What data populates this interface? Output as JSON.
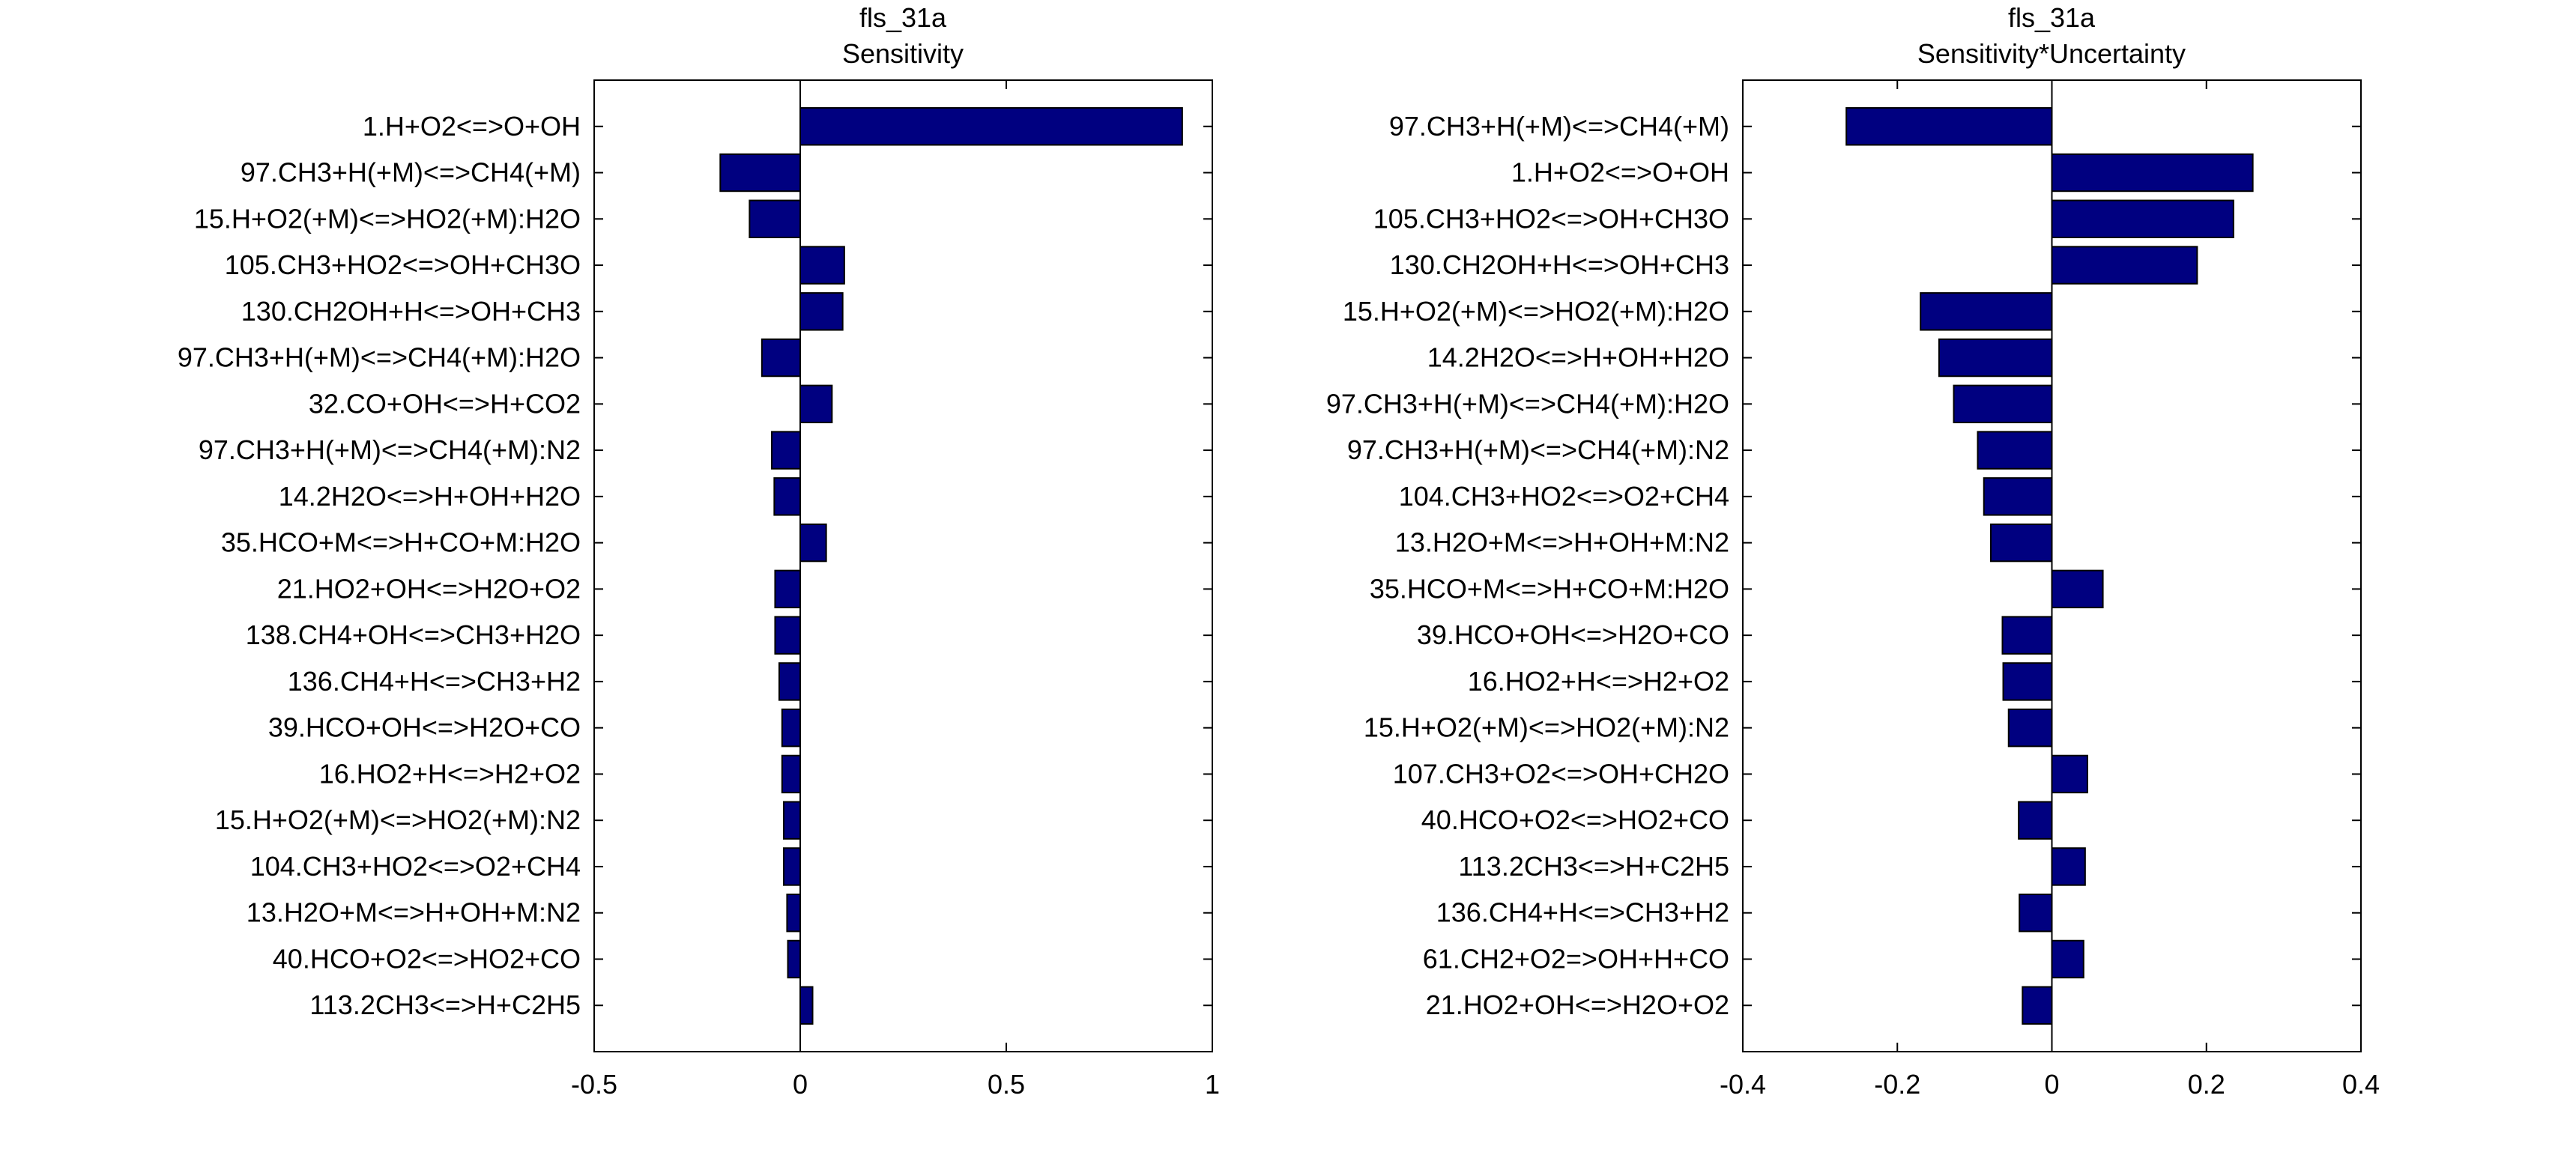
{
  "chart_data": [
    {
      "type": "bar",
      "orientation": "horizontal",
      "title": "fls_31a",
      "subtitle": "Sensitivity",
      "xlabel": "",
      "ylabel": "",
      "xlim": [
        -0.5,
        1
      ],
      "xticks": [
        "-0.5",
        "0",
        "0.5",
        "1"
      ],
      "xtick_values": [
        -0.5,
        0,
        0.5,
        1
      ],
      "grid": false,
      "bar_color": "#000080",
      "categories": [
        "1.H+O2<=>O+OH",
        "97.CH3+H(+M)<=>CH4(+M)",
        "15.H+O2(+M)<=>HO2(+M):H2O",
        "105.CH3+HO2<=>OH+CH3O",
        "130.CH2OH+H<=>OH+CH3",
        "97.CH3+H(+M)<=>CH4(+M):H2O",
        "32.CO+OH<=>H+CO2",
        "97.CH3+H(+M)<=>CH4(+M):N2",
        "14.2H2O<=>H+OH+H2O",
        "35.HCO+M<=>H+CO+M:H2O",
        "21.HO2+OH<=>H2O+O2",
        "138.CH4+OH<=>CH3+H2O",
        "136.CH4+H<=>CH3+H2",
        "39.HCO+OH<=>H2O+CO",
        "16.HO2+H<=>H2+O2",
        "15.H+O2(+M)<=>HO2(+M):N2",
        "104.CH3+HO2<=>O2+CH4",
        "13.H2O+M<=>H+OH+M:N2",
        "40.HCO+O2<=>HO2+CO",
        "113.2CH3<=>H+C2H5"
      ],
      "values": [
        0.927,
        -0.194,
        -0.123,
        0.107,
        0.103,
        -0.093,
        0.077,
        -0.069,
        -0.063,
        0.063,
        -0.061,
        -0.061,
        -0.051,
        -0.044,
        -0.044,
        -0.04,
        -0.04,
        -0.032,
        -0.03,
        0.03
      ]
    },
    {
      "type": "bar",
      "orientation": "horizontal",
      "title": "fls_31a",
      "subtitle": "Sensitivity*Uncertainty",
      "xlabel": "",
      "ylabel": "",
      "xlim": [
        -0.4,
        0.4
      ],
      "xticks": [
        "-0.4",
        "-0.2",
        "0",
        "0.2",
        "0.4"
      ],
      "xtick_values": [
        -0.4,
        -0.2,
        0,
        0.2,
        0.4
      ],
      "grid": false,
      "bar_color": "#000080",
      "categories": [
        "97.CH3+H(+M)<=>CH4(+M)",
        "1.H+O2<=>O+OH",
        "105.CH3+HO2<=>OH+CH3O",
        "130.CH2OH+H<=>OH+CH3",
        "15.H+O2(+M)<=>HO2(+M):H2O",
        "14.2H2O<=>H+OH+H2O",
        "97.CH3+H(+M)<=>CH4(+M):H2O",
        "97.CH3+H(+M)<=>CH4(+M):N2",
        "104.CH3+HO2<=>O2+CH4",
        "13.H2O+M<=>H+OH+M:N2",
        "35.HCO+M<=>H+CO+M:H2O",
        "39.HCO+OH<=>H2O+CO",
        "16.HO2+H<=>H2+O2",
        "15.H+O2(+M)<=>HO2(+M):N2",
        "107.CH3+O2<=>OH+CH2O",
        "40.HCO+O2<=>HO2+CO",
        "113.2CH3<=>H+C2H5",
        "136.CH4+H<=>CH3+H2",
        "61.CH2+O2=>OH+H+CO",
        "21.HO2+OH<=>H2O+O2"
      ],
      "values": [
        -0.266,
        0.26,
        0.235,
        0.188,
        -0.17,
        -0.146,
        -0.127,
        -0.096,
        -0.088,
        -0.079,
        0.066,
        -0.064,
        -0.063,
        -0.056,
        0.046,
        -0.043,
        0.043,
        -0.042,
        0.041,
        -0.038
      ]
    }
  ]
}
